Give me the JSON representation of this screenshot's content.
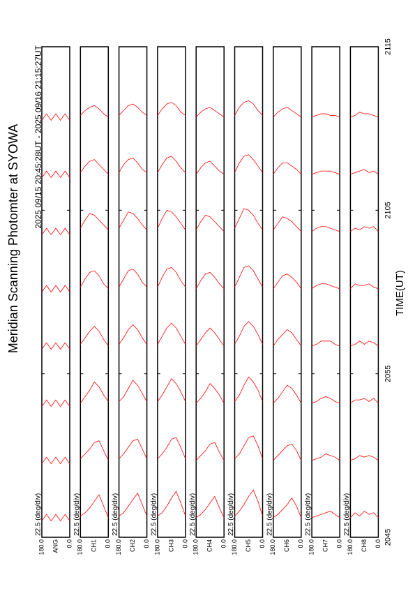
{
  "chart_data": {
    "type": "line",
    "title": "Meridian Scanning Photomter at SYOWA",
    "subtitle": "2025 09/15 20:45:28UT - 2025 09/16 21:15:27UT",
    "x_label": "TIME(UT)",
    "xlim": [
      0,
      30
    ],
    "xticks": [
      {
        "value": 0,
        "label": "2045"
      },
      {
        "value": 10,
        "label": "2055"
      },
      {
        "value": 20,
        "label": "2105"
      },
      {
        "value": 30,
        "label": "2115"
      }
    ],
    "ylim": [
      0,
      180
    ],
    "yticks": [
      {
        "value": 180,
        "label": "180.0"
      },
      {
        "value": 0,
        "label": "0.0"
      }
    ],
    "angles": [
      0,
      30,
      60,
      90,
      120,
      150,
      180
    ],
    "color": "#ff0000",
    "panels": [
      {
        "name": "ANG",
        "scale_label": "22.5 (deg/div)",
        "traces": [
          {
            "start": 1,
            "values": [
              0,
              0.4,
              0,
              0.4,
              0,
              0.4,
              0
            ]
          },
          {
            "start": 4.5,
            "values": [
              0,
              0.4,
              0,
              0.4,
              0,
              0.4,
              0
            ]
          },
          {
            "start": 8,
            "values": [
              0,
              0.4,
              0,
              0.4,
              0,
              0.4,
              0
            ]
          },
          {
            "start": 11.5,
            "values": [
              0,
              0.4,
              0,
              0.4,
              0,
              0.4,
              0
            ]
          },
          {
            "start": 15,
            "values": [
              0,
              0.4,
              0,
              0.4,
              0,
              0.4,
              0
            ]
          },
          {
            "start": 18.5,
            "values": [
              0,
              0.4,
              0,
              0.4,
              0,
              0.4,
              0
            ]
          },
          {
            "start": 22,
            "values": [
              0,
              0.4,
              0,
              0.4,
              0,
              0.4,
              0
            ]
          },
          {
            "start": 25.5,
            "values": [
              0,
              0.4,
              0,
              0.4,
              0,
              0.4,
              0
            ]
          }
        ]
      },
      {
        "name": "CH1",
        "scale_label": "22.5 (deg/div)",
        "traces": [
          {
            "start": 1,
            "values": [
              0.2,
              0.9,
              1.6,
              1.2,
              0.8,
              0.5,
              0.3
            ]
          },
          {
            "start": 4.5,
            "values": [
              0.2,
              0.8,
              1.4,
              1.3,
              0.9,
              0.6,
              0.3
            ]
          },
          {
            "start": 8,
            "values": [
              0.3,
              0.7,
              1.2,
              1.5,
              1.0,
              0.6,
              0.2
            ]
          },
          {
            "start": 11.5,
            "values": [
              0.2,
              0.6,
              1.1,
              1.4,
              1.1,
              0.7,
              0.3
            ]
          },
          {
            "start": 15,
            "values": [
              0.2,
              0.5,
              1.0,
              1.3,
              1.2,
              0.8,
              0.3
            ]
          },
          {
            "start": 18.5,
            "values": [
              0.3,
              0.6,
              0.9,
              1.2,
              1.3,
              0.9,
              0.4
            ]
          },
          {
            "start": 22,
            "values": [
              0.2,
              0.5,
              0.8,
              1.1,
              1.0,
              0.7,
              0.3
            ]
          },
          {
            "start": 25.5,
            "values": [
              0.2,
              0.4,
              0.7,
              0.9,
              0.8,
              0.6,
              0.3
            ]
          }
        ]
      },
      {
        "name": "CH2",
        "scale_label": "22.5 (deg/div)",
        "traces": [
          {
            "start": 1,
            "values": [
              0.3,
              1.0,
              1.7,
              1.3,
              0.9,
              0.5,
              0.3
            ]
          },
          {
            "start": 4.5,
            "values": [
              0.3,
              0.9,
              1.5,
              1.4,
              1.0,
              0.6,
              0.3
            ]
          },
          {
            "start": 8,
            "values": [
              0.3,
              0.8,
              1.3,
              1.6,
              1.1,
              0.6,
              0.3
            ]
          },
          {
            "start": 11.5,
            "values": [
              0.3,
              0.7,
              1.2,
              1.5,
              1.2,
              0.7,
              0.3
            ]
          },
          {
            "start": 15,
            "values": [
              0.3,
              0.6,
              1.1,
              1.4,
              1.3,
              0.8,
              0.3
            ]
          },
          {
            "start": 18.5,
            "values": [
              0.3,
              0.6,
              1.0,
              1.3,
              1.4,
              0.9,
              0.4
            ]
          },
          {
            "start": 22,
            "values": [
              0.3,
              0.5,
              0.9,
              1.2,
              1.1,
              0.8,
              0.3
            ]
          },
          {
            "start": 25.5,
            "values": [
              0.3,
              0.5,
              0.8,
              1.0,
              0.9,
              0.6,
              0.3
            ]
          }
        ]
      },
      {
        "name": "CH3",
        "scale_label": "22.5 (deg/div)",
        "traces": [
          {
            "start": 1,
            "values": [
              0.3,
              1.1,
              1.8,
              1.4,
              0.9,
              0.5,
              0.3
            ]
          },
          {
            "start": 4.5,
            "values": [
              0.3,
              1.0,
              1.6,
              1.5,
              1.0,
              0.6,
              0.3
            ]
          },
          {
            "start": 8,
            "values": [
              0.3,
              0.9,
              1.4,
              1.7,
              1.2,
              0.7,
              0.3
            ]
          },
          {
            "start": 11.5,
            "values": [
              0.3,
              0.8,
              1.3,
              1.6,
              1.3,
              0.8,
              0.3
            ]
          },
          {
            "start": 15,
            "values": [
              0.3,
              0.7,
              1.2,
              1.5,
              1.4,
              0.9,
              0.3
            ]
          },
          {
            "start": 18.5,
            "values": [
              0.3,
              0.7,
              1.1,
              1.4,
              1.5,
              1.0,
              0.4
            ]
          },
          {
            "start": 22,
            "values": [
              0.3,
              0.6,
              1.0,
              1.3,
              1.2,
              0.8,
              0.3
            ]
          },
          {
            "start": 25.5,
            "values": [
              0.3,
              0.5,
              0.9,
              1.1,
              1.0,
              0.7,
              0.3
            ]
          }
        ]
      },
      {
        "name": "CH4",
        "scale_label": "22.5 (deg/div)",
        "traces": [
          {
            "start": 1,
            "values": [
              0.2,
              0.8,
              1.5,
              1.1,
              0.7,
              0.4,
              0.2
            ]
          },
          {
            "start": 4.5,
            "values": [
              0.2,
              0.7,
              1.3,
              1.2,
              0.8,
              0.5,
              0.2
            ]
          },
          {
            "start": 8,
            "values": [
              0.2,
              0.7,
              1.1,
              1.4,
              0.9,
              0.5,
              0.2
            ]
          },
          {
            "start": 11.5,
            "values": [
              0.2,
              0.6,
              1.0,
              1.3,
              1.0,
              0.6,
              0.2
            ]
          },
          {
            "start": 15,
            "values": [
              0.2,
              0.5,
              0.9,
              1.2,
              1.1,
              0.7,
              0.2
            ]
          },
          {
            "start": 18.5,
            "values": [
              0.2,
              0.5,
              0.8,
              1.1,
              1.2,
              0.8,
              0.3
            ]
          },
          {
            "start": 22,
            "values": [
              0.2,
              0.4,
              0.7,
              1.0,
              0.9,
              0.6,
              0.2
            ]
          },
          {
            "start": 25.5,
            "values": [
              0.2,
              0.4,
              0.6,
              0.8,
              0.7,
              0.5,
              0.2
            ]
          }
        ]
      },
      {
        "name": "CH5",
        "scale_label": "22.5 (deg/div)",
        "traces": [
          {
            "start": 1,
            "values": [
              0.3,
              1.2,
              1.9,
              1.5,
              1.0,
              0.6,
              0.3
            ]
          },
          {
            "start": 4.5,
            "values": [
              0.3,
              1.1,
              1.7,
              1.6,
              1.1,
              0.6,
              0.3
            ]
          },
          {
            "start": 8,
            "values": [
              0.3,
              1.0,
              1.5,
              1.8,
              1.3,
              0.7,
              0.3
            ]
          },
          {
            "start": 11.5,
            "values": [
              0.3,
              0.9,
              1.4,
              1.7,
              1.4,
              0.8,
              0.3
            ]
          },
          {
            "start": 15,
            "values": [
              0.3,
              0.8,
              1.3,
              1.6,
              1.5,
              0.9,
              0.3
            ]
          },
          {
            "start": 18.5,
            "values": [
              0.3,
              0.7,
              1.2,
              1.5,
              1.6,
              1.0,
              0.4
            ]
          },
          {
            "start": 22,
            "values": [
              0.3,
              0.7,
              1.1,
              1.4,
              1.3,
              0.9,
              0.3
            ]
          },
          {
            "start": 25.5,
            "values": [
              0.3,
              0.6,
              1.0,
              1.2,
              1.1,
              0.8,
              0.3
            ]
          }
        ]
      },
      {
        "name": "CH6",
        "scale_label": "22.5 (deg/div)",
        "traces": [
          {
            "start": 1,
            "values": [
              0.2,
              0.9,
              1.4,
              1.0,
              0.7,
              0.4,
              0.2
            ]
          },
          {
            "start": 4.5,
            "values": [
              0.2,
              0.8,
              1.2,
              1.1,
              0.8,
              0.5,
              0.2
            ]
          },
          {
            "start": 8,
            "values": [
              0.2,
              0.7,
              1.1,
              1.3,
              0.9,
              0.5,
              0.2
            ]
          },
          {
            "start": 11.5,
            "values": [
              0.2,
              0.6,
              1.0,
              1.2,
              0.9,
              0.6,
              0.2
            ]
          },
          {
            "start": 15,
            "values": [
              0.2,
              0.6,
              0.9,
              1.1,
              1.0,
              0.6,
              0.2
            ]
          },
          {
            "start": 18.5,
            "values": [
              0.2,
              0.5,
              0.8,
              1.0,
              1.1,
              0.7,
              0.3
            ]
          },
          {
            "start": 22,
            "values": [
              0.2,
              0.5,
              0.7,
              0.9,
              0.9,
              0.6,
              0.2
            ]
          },
          {
            "start": 25.5,
            "values": [
              0.2,
              0.4,
              0.6,
              0.8,
              0.7,
              0.5,
              0.2
            ]
          }
        ]
      },
      {
        "name": "CH7",
        "scale_label": "22.5 (deg/div)",
        "traces": [
          {
            "start": 1,
            "values": [
              0.2,
              0.4,
              0.6,
              0.5,
              0.4,
              0.3,
              0.2
            ]
          },
          {
            "start": 4.5,
            "values": [
              0.2,
              0.4,
              0.5,
              0.6,
              0.4,
              0.3,
              0.2
            ]
          },
          {
            "start": 8,
            "values": [
              0.2,
              0.3,
              0.5,
              0.6,
              0.5,
              0.3,
              0.2
            ]
          },
          {
            "start": 11.5,
            "values": [
              0.2,
              0.3,
              0.5,
              0.5,
              0.5,
              0.3,
              0.2
            ]
          },
          {
            "start": 15,
            "values": [
              0.2,
              0.3,
              0.4,
              0.5,
              0.5,
              0.4,
              0.2
            ]
          },
          {
            "start": 18.5,
            "values": [
              0.2,
              0.3,
              0.4,
              0.5,
              0.5,
              0.4,
              0.2
            ]
          },
          {
            "start": 22,
            "values": [
              0.2,
              0.3,
              0.4,
              0.4,
              0.4,
              0.3,
              0.2
            ]
          },
          {
            "start": 25.5,
            "values": [
              0.2,
              0.3,
              0.3,
              0.4,
              0.4,
              0.3,
              0.2
            ]
          }
        ]
      },
      {
        "name": "CH8",
        "scale_label": "22.5 (deg/div)",
        "traces": [
          {
            "start": 1,
            "values": [
              0.2,
              0.5,
              0.4,
              0.6,
              0.3,
              0.5,
              0.2
            ]
          },
          {
            "start": 4.5,
            "values": [
              0.2,
              0.4,
              0.5,
              0.4,
              0.5,
              0.3,
              0.2
            ]
          },
          {
            "start": 8,
            "values": [
              0.2,
              0.5,
              0.3,
              0.5,
              0.4,
              0.4,
              0.2
            ]
          },
          {
            "start": 11.5,
            "values": [
              0.2,
              0.4,
              0.5,
              0.3,
              0.5,
              0.3,
              0.2
            ]
          },
          {
            "start": 15,
            "values": [
              0.2,
              0.3,
              0.5,
              0.4,
              0.4,
              0.5,
              0.2
            ]
          },
          {
            "start": 18.5,
            "values": [
              0.2,
              0.5,
              0.4,
              0.5,
              0.3,
              0.4,
              0.2
            ]
          },
          {
            "start": 22,
            "values": [
              0.2,
              0.4,
              0.3,
              0.5,
              0.4,
              0.3,
              0.2
            ]
          },
          {
            "start": 25.5,
            "values": [
              0.2,
              0.3,
              0.4,
              0.4,
              0.5,
              0.3,
              0.2
            ]
          }
        ]
      }
    ]
  }
}
